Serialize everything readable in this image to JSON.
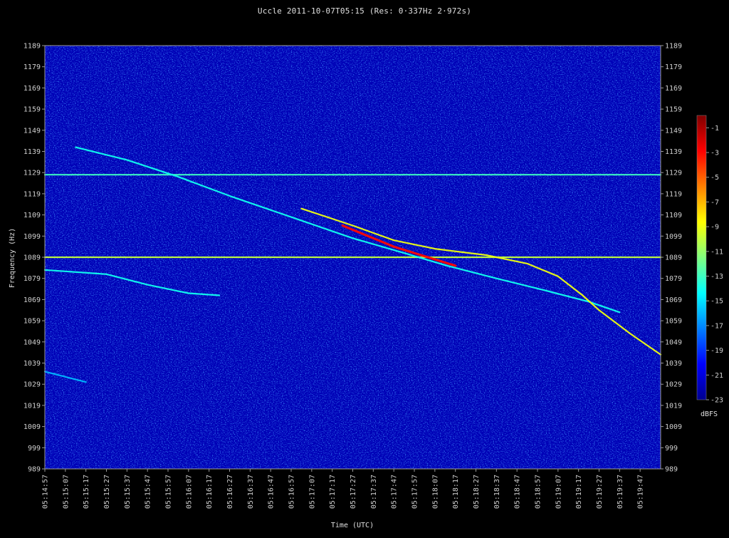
{
  "chart_data": {
    "type": "heatmap",
    "title": "Uccle 2011-10-07T05:15 (Res: 0·337Hz 2·972s)",
    "xlabel": "Time (UTC)",
    "ylabel": "Frequency (Hz)",
    "x_ticks": [
      "05:14:57",
      "05:15:07",
      "05:15:17",
      "05:15:27",
      "05:15:37",
      "05:15:47",
      "05:15:57",
      "05:16:07",
      "05:16:17",
      "05:16:27",
      "05:16:37",
      "05:16:47",
      "05:16:57",
      "05:17:07",
      "05:17:17",
      "05:17:27",
      "05:17:37",
      "05:17:47",
      "05:17:57",
      "05:18:07",
      "05:18:17",
      "05:18:27",
      "05:18:37",
      "05:18:47",
      "05:18:57",
      "05:19:07",
      "05:19:17",
      "05:19:27",
      "05:19:37",
      "05:19:47"
    ],
    "y_ticks": [
      1189,
      1179,
      1169,
      1159,
      1149,
      1139,
      1129,
      1119,
      1109,
      1099,
      1089,
      1079,
      1069,
      1059,
      1049,
      1039,
      1029,
      1019,
      1009,
      999,
      989
    ],
    "x_range_s": [
      0,
      300
    ],
    "y_range_hz": [
      989,
      1189
    ],
    "colorbar": {
      "label": "dBFS",
      "ticks": [
        -1,
        -3,
        -5,
        -7,
        -9,
        -11,
        -13,
        -15,
        -17,
        -19,
        -21,
        -23
      ],
      "range": [
        -23,
        0
      ],
      "colors": [
        "#00008f",
        "#0000ff",
        "#0080ff",
        "#00ffff",
        "#80ff80",
        "#ffff00",
        "#ff8000",
        "#ff0000",
        "#800000"
      ]
    },
    "background_level_dbfs": -22,
    "traces": [
      {
        "points": [
          [
            0,
            1128
          ],
          [
            300,
            1128
          ]
        ],
        "level": -13
      },
      {
        "points": [
          [
            0,
            1089
          ],
          [
            300,
            1089
          ]
        ],
        "level": -10
      },
      {
        "points": [
          [
            15,
            1141
          ],
          [
            40,
            1135
          ],
          [
            65,
            1127
          ],
          [
            90,
            1118
          ],
          [
            120,
            1108
          ],
          [
            150,
            1098
          ],
          [
            175,
            1091
          ],
          [
            196,
            1085
          ],
          [
            220,
            1079
          ],
          [
            245,
            1073
          ],
          [
            265,
            1068
          ],
          [
            280,
            1063
          ]
        ],
        "level": -14
      },
      {
        "points": [
          [
            125,
            1112
          ],
          [
            150,
            1104
          ],
          [
            170,
            1097
          ],
          [
            190,
            1093
          ],
          [
            215,
            1090
          ],
          [
            235,
            1086
          ],
          [
            250,
            1080
          ],
          [
            262,
            1071
          ],
          [
            270,
            1064
          ],
          [
            285,
            1053
          ],
          [
            300,
            1043
          ]
        ],
        "level": -9
      },
      {
        "points": [
          [
            145,
            1104
          ],
          [
            160,
            1098
          ],
          [
            170,
            1094
          ],
          [
            180,
            1091
          ],
          [
            190,
            1088
          ],
          [
            200,
            1085
          ]
        ],
        "level": -3
      },
      {
        "points": [
          [
            0,
            1083
          ],
          [
            30,
            1081
          ],
          [
            50,
            1076
          ],
          [
            70,
            1072
          ],
          [
            85,
            1071
          ]
        ],
        "level": -14
      },
      {
        "points": [
          [
            0,
            1035
          ],
          [
            20,
            1030
          ]
        ],
        "level": -16
      }
    ]
  }
}
